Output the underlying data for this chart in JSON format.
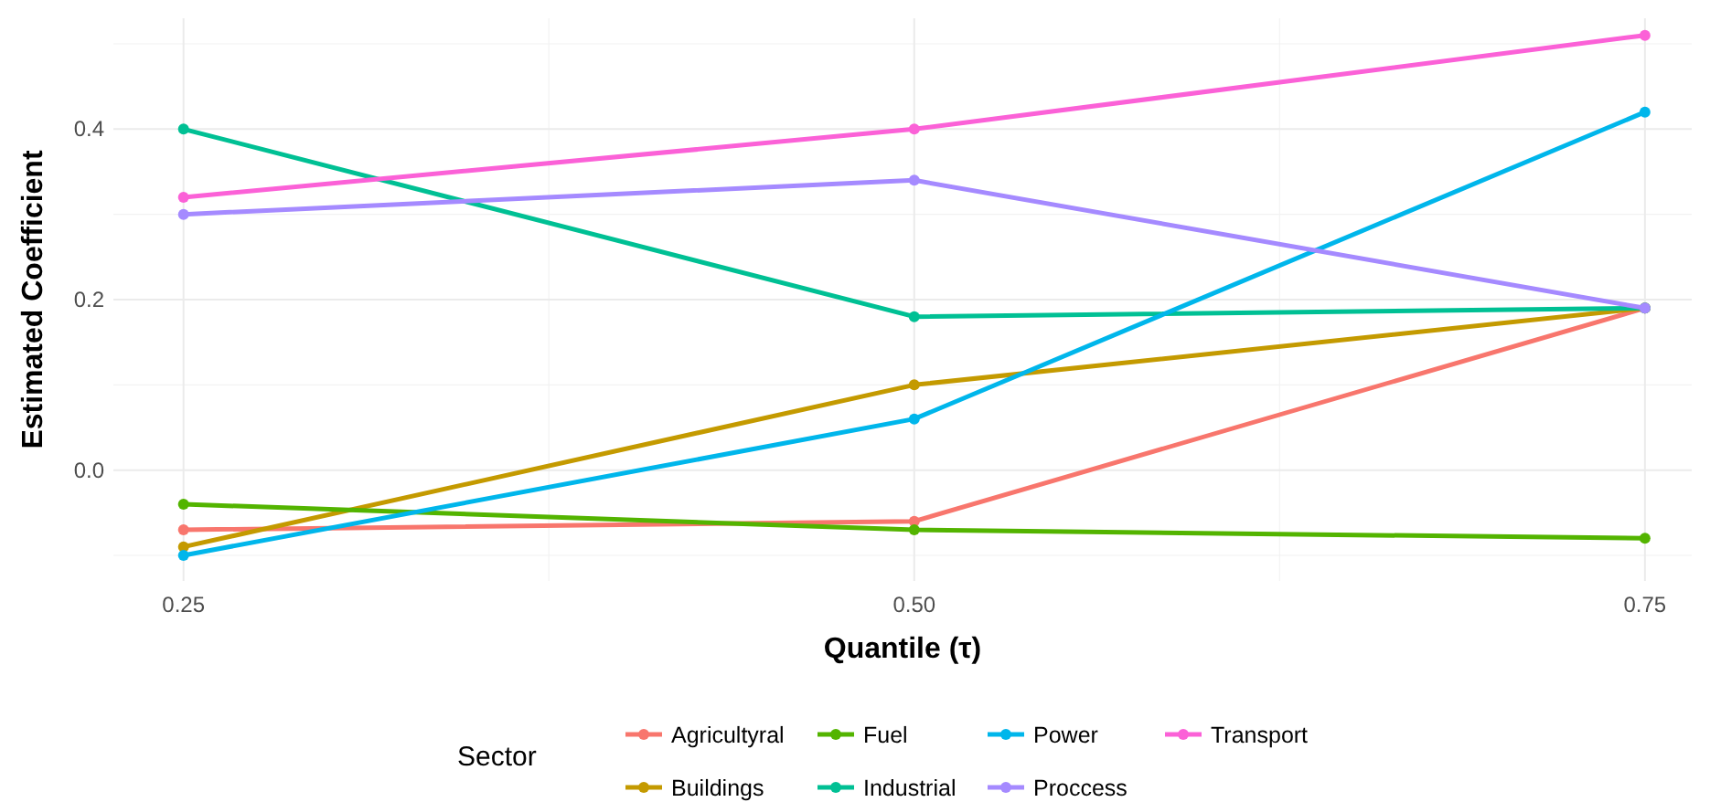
{
  "chart_data": {
    "type": "line",
    "xlabel": "Quantile (τ)",
    "ylabel": "Estimated Coefficient",
    "legend_title": "Sector",
    "x": [
      0.25,
      0.5,
      0.75
    ],
    "xlim": [
      0.226,
      0.766
    ],
    "ylim": [
      -0.13,
      0.53
    ],
    "xticks": [
      {
        "value": 0.25,
        "label": "0.25"
      },
      {
        "value": 0.5,
        "label": "0.50"
      },
      {
        "value": 0.75,
        "label": "0.75"
      }
    ],
    "yticks": [
      {
        "value": 0,
        "label": "0.0"
      },
      0.2,
      0.4
    ],
    "grid": true,
    "legend": "bottom",
    "marker": "circle",
    "line_style": "solid",
    "series": [
      {
        "name": "Agricultyral",
        "color": "#f8766d",
        "values": [
          -0.07,
          -0.06,
          0.19
        ]
      },
      {
        "name": "Buildings",
        "color": "#c49a00",
        "values": [
          -0.09,
          0.1,
          0.19
        ]
      },
      {
        "name": "Fuel",
        "color": "#53b400",
        "values": [
          -0.04,
          -0.07,
          -0.08
        ]
      },
      {
        "name": "Industrial",
        "color": "#00c094",
        "values": [
          0.4,
          0.18,
          0.19
        ]
      },
      {
        "name": "Power",
        "color": "#00b6eb",
        "values": [
          -0.1,
          0.06,
          0.42
        ]
      },
      {
        "name": "Proccess",
        "color": "#a58aff",
        "values": [
          0.3,
          0.34,
          0.19
        ]
      },
      {
        "name": "Transport",
        "color": "#fb61d7",
        "values": [
          0.32,
          0.4,
          0.51
        ]
      }
    ]
  }
}
